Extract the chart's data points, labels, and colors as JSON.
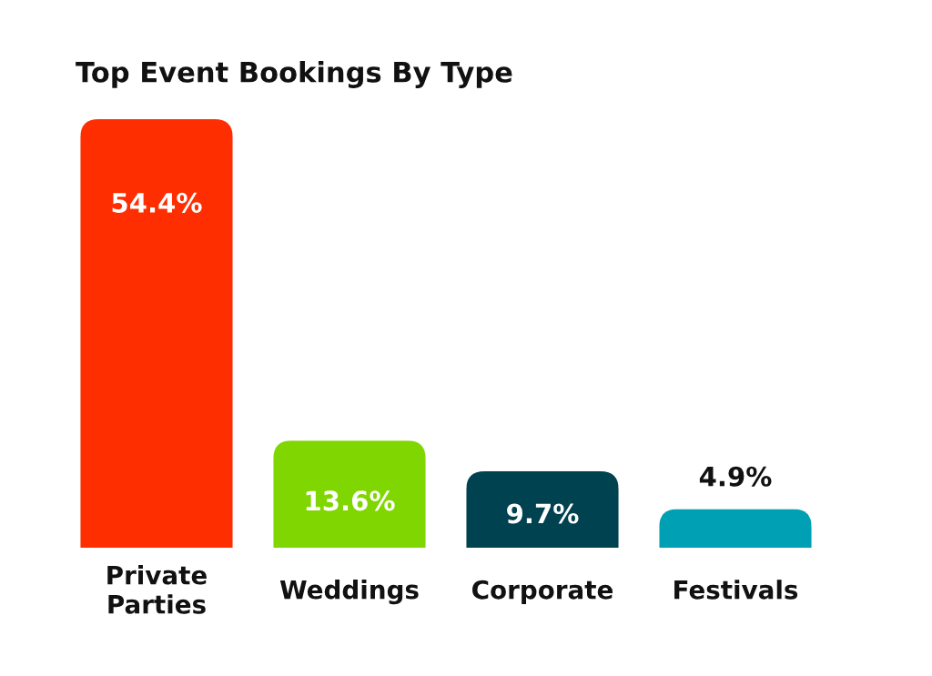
{
  "chart_data": {
    "type": "bar",
    "title": "Top Event Bookings By Type",
    "categories": [
      "Private\nParties",
      "Weddings",
      "Corporate",
      "Festivals"
    ],
    "values": [
      54.4,
      13.6,
      9.7,
      4.9
    ],
    "colors": [
      "#ff2e00",
      "#80d600",
      "#00424f",
      "#00a0b4"
    ],
    "value_labels": [
      "54.4%",
      "13.6%",
      "9.7%",
      "4.9%"
    ]
  }
}
